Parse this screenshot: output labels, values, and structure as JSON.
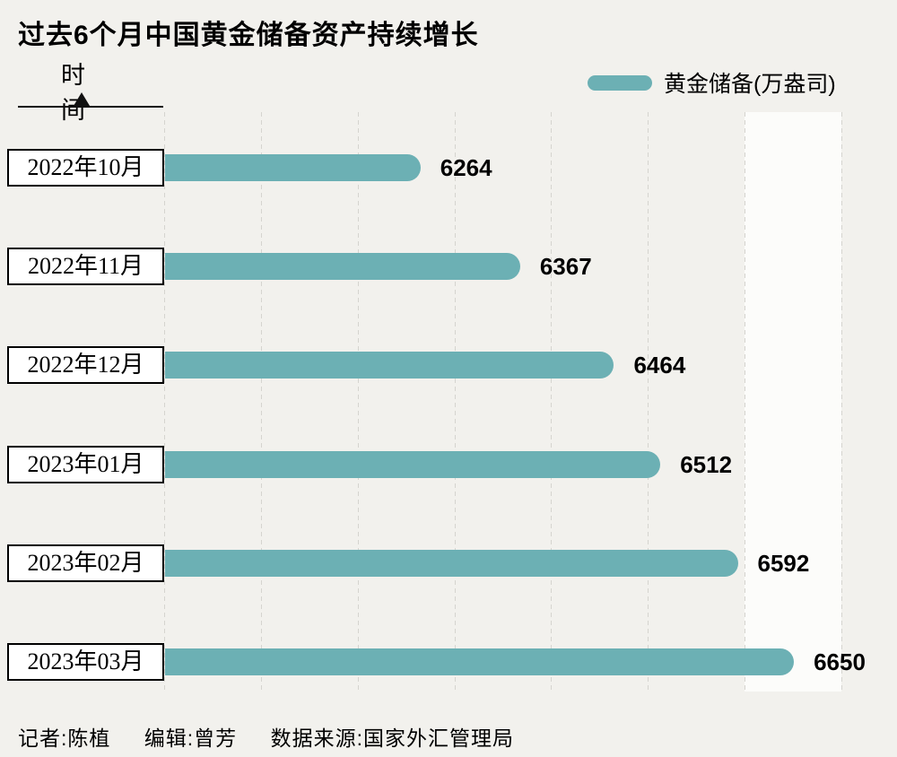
{
  "title": "过去6个月中国黄金储备资产持续增长",
  "axis_label": "时间",
  "legend_label": "黄金储备(万盎司)",
  "footer": {
    "reporter": "记者:陈植",
    "editor": "编辑:曾芳",
    "source": "数据来源:国家外汇管理局"
  },
  "chart_data": {
    "type": "bar",
    "orientation": "horizontal",
    "title": "过去6个月中国黄金储备资产持续增长",
    "ylabel": "时间",
    "series_name": "黄金储备(万盎司)",
    "categories": [
      "2022年10月",
      "2022年11月",
      "2022年12月",
      "2023年01月",
      "2023年02月",
      "2023年03月"
    ],
    "values": [
      6264,
      6367,
      6464,
      6512,
      6592,
      6650
    ],
    "xlim": [
      6000,
      6700
    ],
    "grid_step": 100,
    "grid": "dashed-vertical",
    "legend_position": "top-right",
    "bar_color": "#6cb0b4",
    "highlight_band": {
      "from": 6600,
      "to": 6700,
      "color": "#fcfcfa"
    }
  }
}
